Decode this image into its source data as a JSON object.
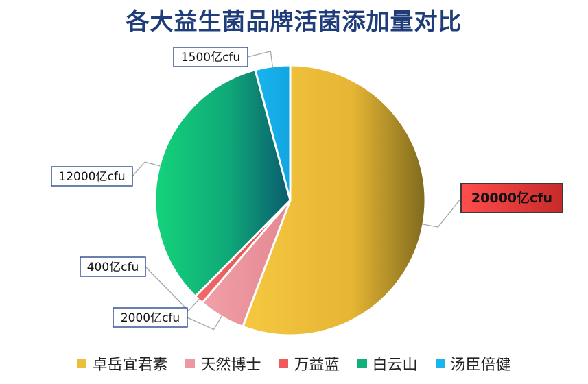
{
  "chart_data": {
    "type": "pie",
    "title": "各大益生菌品牌活菌添加量对比",
    "unit": "亿cfu",
    "categories": [
      "卓岳宜君素",
      "天然博士",
      "万益蓝",
      "白云山",
      "汤臣倍健"
    ],
    "values": [
      20000,
      2000,
      400,
      12000,
      1500
    ],
    "data_labels": [
      "20000亿cfu",
      "2000亿cfu",
      "400亿cfu",
      "12000亿cfu",
      "1500亿cfu"
    ],
    "colors": [
      "#e9bf3c",
      "#ee97a0",
      "#ef5a5a",
      "#11b07a",
      "#19b5ee"
    ],
    "legend_position": "bottom",
    "highlight": "卓岳宜君素"
  }
}
